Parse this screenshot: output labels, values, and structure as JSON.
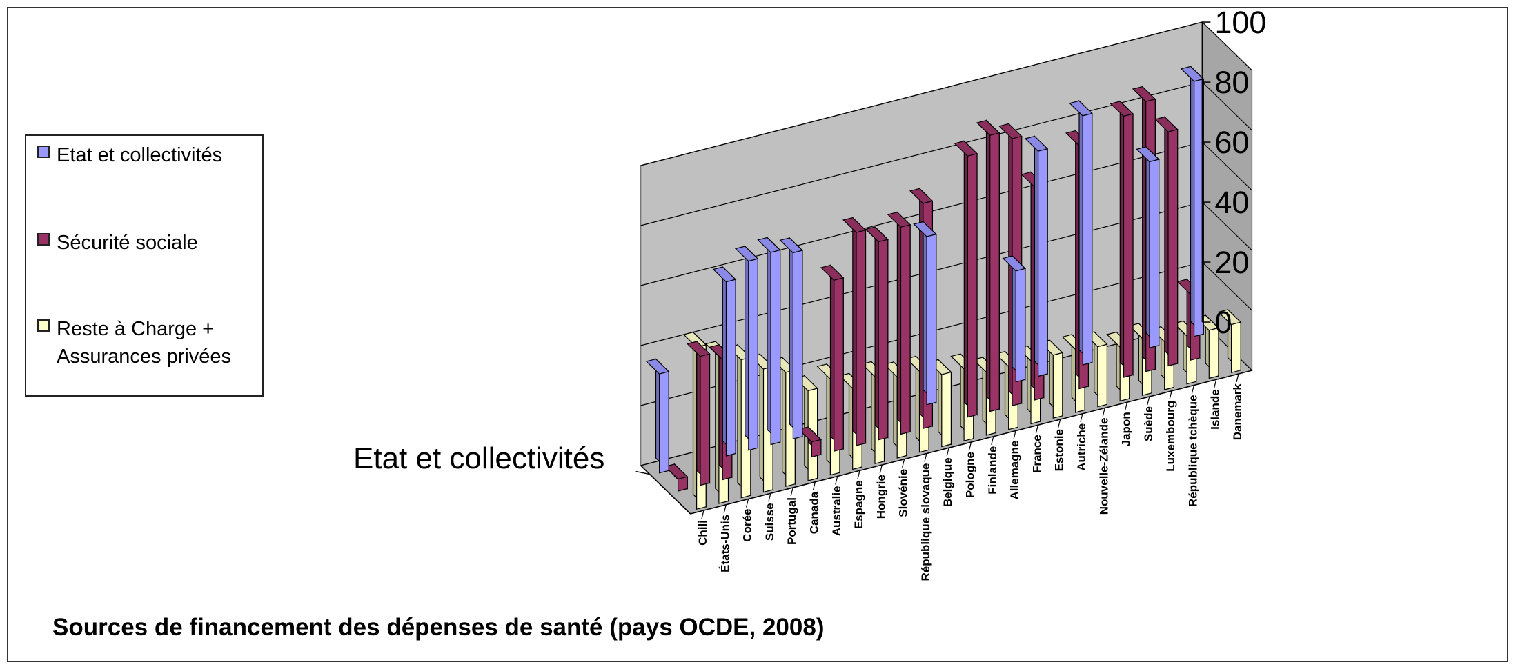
{
  "chart_data": {
    "type": "bar",
    "title": "Sources de financement des dépenses de santé (pays OCDE, 2008)",
    "depth_axis_label": "Etat et collectivités",
    "categories": [
      "Chili",
      "États-Unis",
      "Corée",
      "Suisse",
      "Portugal",
      "Canada",
      "Australie",
      "Espagne",
      "Hongrie",
      "Slovénie",
      "République slovaque",
      "Belgique",
      "Pologne",
      "Finlande",
      "Allemagne",
      "France",
      "Estonie",
      "Autriche",
      "Nouvelle-Zélande",
      "Japon",
      "Suède",
      "Luxembourg",
      "République tchèque",
      "Islande",
      "Danemark"
    ],
    "series": [
      {
        "name": "Etat et collectivités",
        "color": "#9999ff",
        "values": [
          33,
          0,
          0,
          58,
          63,
          64,
          62,
          0,
          0,
          0,
          0,
          0,
          56,
          0,
          0,
          0,
          37,
          75,
          0,
          83,
          0,
          0,
          62,
          0,
          85
        ]
      },
      {
        "name": "Sécurité sociale",
        "color": "#993366",
        "values": [
          4,
          43,
          40,
          0,
          0,
          0,
          5,
          57,
          71,
          66,
          69,
          75,
          0,
          87,
          92,
          89,
          71,
          0,
          81,
          0,
          87,
          90,
          78,
          22,
          0
        ]
      },
      {
        "name": "Reste à Charge + Assurances privées",
        "color": "#ffffcc",
        "values": [
          54,
          49,
          46,
          41,
          38,
          30,
          32,
          27,
          29,
          27,
          27,
          24,
          24,
          21,
          21,
          21,
          21,
          21,
          20,
          18,
          19,
          16,
          16,
          16,
          16
        ]
      }
    ],
    "ylim": [
      0,
      100
    ],
    "yticks": [
      0,
      20,
      40,
      60,
      80,
      100
    ],
    "grid": true,
    "legend": "left"
  }
}
